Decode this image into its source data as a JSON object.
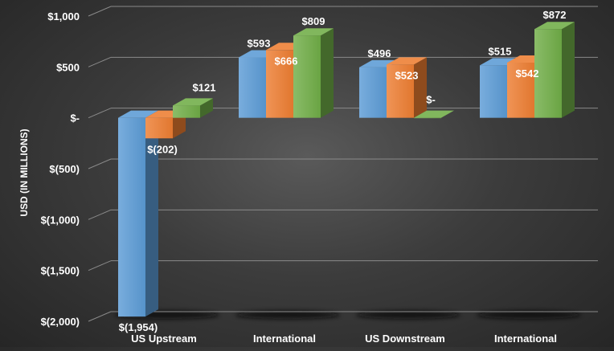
{
  "chart_data": {
    "type": "bar",
    "bar_style": "3d-clustered",
    "title": "",
    "xlabel": "",
    "ylabel": "USD (IN MILLIONS)",
    "ylim": [
      -2000,
      1000
    ],
    "y_ticks": [
      {
        "value": 1000,
        "label": "$1,000"
      },
      {
        "value": 500,
        "label": "$500"
      },
      {
        "value": 0,
        "label": "$-"
      },
      {
        "value": -500,
        "label": "$(500)"
      },
      {
        "value": -1000,
        "label": "$(1,000)"
      },
      {
        "value": -1500,
        "label": "$(1,500)"
      },
      {
        "value": -2000,
        "label": "$(2,000)"
      }
    ],
    "grid": true,
    "legend": "none",
    "categories": [
      "US Upstream",
      "International",
      "US Downstream",
      "International"
    ],
    "series": [
      {
        "color": "#5b9bd5",
        "values": [
          -1954,
          593,
          496,
          515
        ],
        "labels": [
          "$(1,954)",
          "$593",
          "$496",
          "$515"
        ]
      },
      {
        "color": "#ed7d31",
        "values": [
          -202,
          666,
          523,
          542
        ],
        "labels": [
          "$(202)",
          "$666",
          "$523",
          "$542"
        ]
      },
      {
        "color": "#70ad47",
        "values": [
          121,
          809,
          0,
          872
        ],
        "labels": [
          "$121",
          "$809",
          "$-",
          "$872"
        ]
      }
    ],
    "colors": {
      "text": "#ffffff",
      "grid": "#8a8a8a"
    }
  }
}
